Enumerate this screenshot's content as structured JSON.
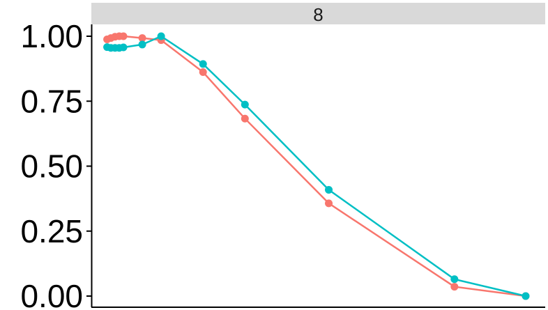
{
  "chart_data": {
    "type": "line",
    "facet_label": "8",
    "ylim": [
      0,
      1.04
    ],
    "y_ticks": [
      {
        "value": 0.0,
        "label": "0.00"
      },
      {
        "value": 0.25,
        "label": "0.25"
      },
      {
        "value": 0.5,
        "label": "0.50"
      },
      {
        "value": 0.75,
        "label": "0.75"
      },
      {
        "value": 1.0,
        "label": "1.00"
      }
    ],
    "xlim": [
      0,
      10
    ],
    "grid": false,
    "series": [
      {
        "color": "#F8766D",
        "x": [
          0.01,
          0.03,
          0.05,
          0.07,
          0.1,
          0.2,
          0.4,
          0.6,
          0.9,
          1.2,
          1.8,
          2.5
        ],
        "points": [
          {
            "x": 0.01,
            "y": 0.988
          },
          {
            "x": 0.1,
            "y": 0.993
          },
          {
            "x": 0.2,
            "y": 0.998
          },
          {
            "x": 0.3,
            "y": 1.0
          },
          {
            "x": 0.4,
            "y": 1.0
          },
          {
            "x": 0.85,
            "y": 0.993
          },
          {
            "x": 1.3,
            "y": 0.985
          },
          {
            "x": 2.3,
            "y": 0.862
          },
          {
            "x": 3.3,
            "y": 0.683
          },
          {
            "x": 5.3,
            "y": 0.357
          },
          {
            "x": 8.3,
            "y": 0.036
          },
          {
            "x": 10.0,
            "y": 0.0
          }
        ]
      },
      {
        "color": "#00BFC4",
        "points": [
          {
            "x": 0.01,
            "y": 0.958
          },
          {
            "x": 0.1,
            "y": 0.955
          },
          {
            "x": 0.2,
            "y": 0.955
          },
          {
            "x": 0.3,
            "y": 0.955
          },
          {
            "x": 0.4,
            "y": 0.957
          },
          {
            "x": 0.85,
            "y": 0.968
          },
          {
            "x": 1.3,
            "y": 1.0
          },
          {
            "x": 2.3,
            "y": 0.893
          },
          {
            "x": 3.3,
            "y": 0.737
          },
          {
            "x": 5.3,
            "y": 0.409
          },
          {
            "x": 8.3,
            "y": 0.065
          },
          {
            "x": 10.0,
            "y": 0.0
          }
        ]
      }
    ]
  }
}
